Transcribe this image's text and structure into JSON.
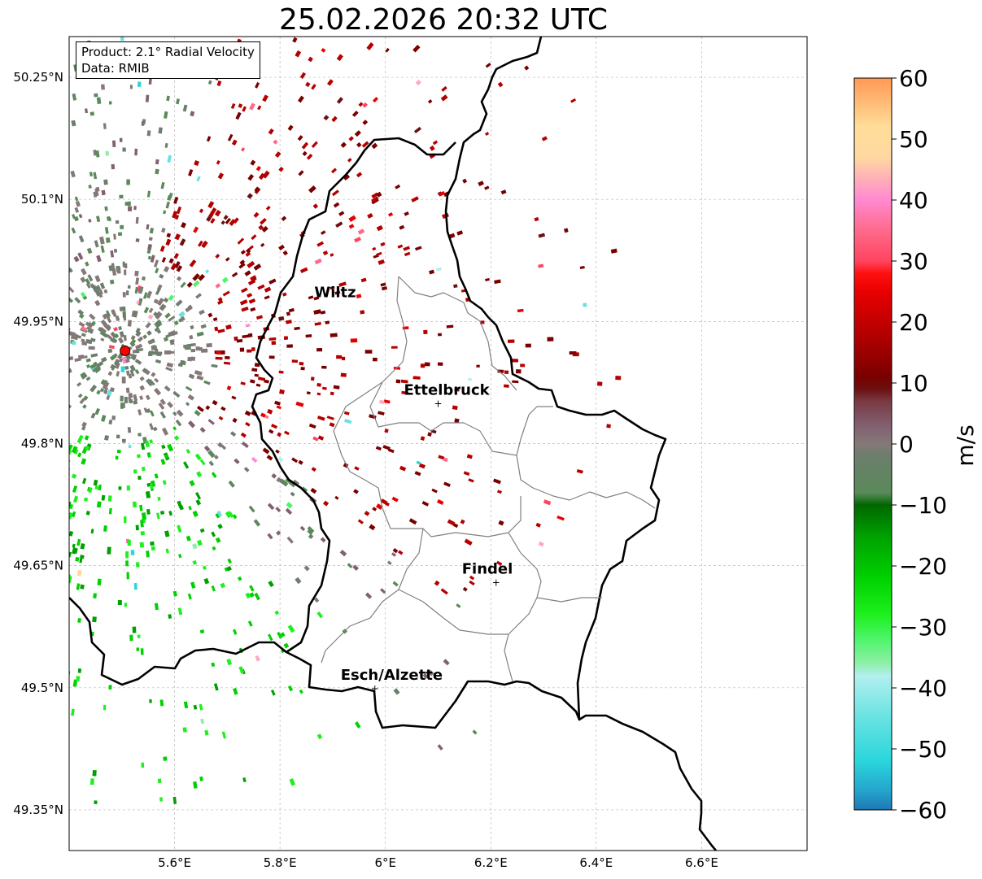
{
  "title": "25.02.2026 20:32 UTC",
  "info": {
    "product": "Product: 2.1° Radial Velocity",
    "source": "Data: RMIB"
  },
  "axes": {
    "lon_range": [
      5.4,
      6.8
    ],
    "lat_range": [
      49.3,
      50.3
    ],
    "lon_ticks": [
      {
        "value": 5.6,
        "label": "5.6°E"
      },
      {
        "value": 5.8,
        "label": "5.8°E"
      },
      {
        "value": 6.0,
        "label": "6°E"
      },
      {
        "value": 6.2,
        "label": "6.2°E"
      },
      {
        "value": 6.4,
        "label": "6.4°E"
      },
      {
        "value": 6.6,
        "label": "6.6°E"
      }
    ],
    "lat_ticks": [
      {
        "value": 50.25,
        "label": "50.25°N"
      },
      {
        "value": 50.1,
        "label": "50.1°N"
      },
      {
        "value": 49.95,
        "label": "49.95°N"
      },
      {
        "value": 49.8,
        "label": "49.8°N"
      },
      {
        "value": 49.65,
        "label": "49.65°N"
      },
      {
        "value": 49.5,
        "label": "49.5°N"
      },
      {
        "value": 49.35,
        "label": "49.35°N"
      }
    ],
    "grid": true
  },
  "radar": {
    "lon": 5.506,
    "lat": 49.914,
    "color": "#ff0000"
  },
  "cities": [
    {
      "name": "Wiltz",
      "lon": 5.93,
      "lat": 49.97,
      "marker": false
    },
    {
      "name": "Ettelbruck",
      "lon": 6.1,
      "lat": 49.85,
      "marker": true
    },
    {
      "name": "Findel",
      "lon": 6.21,
      "lat": 49.63,
      "marker": true
    },
    {
      "name": "Esch/Alzette",
      "lon": 5.98,
      "lat": 49.5,
      "marker": true
    }
  ],
  "colorbar": {
    "label": "m/s",
    "range": [
      -60,
      60
    ],
    "ticks": [
      {
        "value": 60,
        "label": "60"
      },
      {
        "value": 50,
        "label": "50"
      },
      {
        "value": 40,
        "label": "40"
      },
      {
        "value": 30,
        "label": "30"
      },
      {
        "value": 20,
        "label": "20"
      },
      {
        "value": 10,
        "label": "10"
      },
      {
        "value": 0,
        "label": "0"
      },
      {
        "value": -10,
        "label": "−10"
      },
      {
        "value": -20,
        "label": "−20"
      },
      {
        "value": -30,
        "label": "−30"
      },
      {
        "value": -40,
        "label": "−40"
      },
      {
        "value": -50,
        "label": "−50"
      },
      {
        "value": -60,
        "label": "−60"
      }
    ],
    "stops": [
      {
        "v": -60,
        "c": "#1f77b4"
      },
      {
        "v": -57,
        "c": "#24a3cc"
      },
      {
        "v": -52,
        "c": "#2ad6dc"
      },
      {
        "v": -45,
        "c": "#66e2e2"
      },
      {
        "v": -38,
        "c": "#b3efef"
      },
      {
        "v": -36,
        "c": "#8ef0a8"
      },
      {
        "v": -32,
        "c": "#4ef46a"
      },
      {
        "v": -28,
        "c": "#1ef01e"
      },
      {
        "v": -22,
        "c": "#00d100"
      },
      {
        "v": -15,
        "c": "#00a000"
      },
      {
        "v": -10,
        "c": "#006600"
      },
      {
        "v": -8,
        "c": "#5a8a5a"
      },
      {
        "v": -2,
        "c": "#6c7e6c"
      },
      {
        "v": 0,
        "c": "#857878"
      },
      {
        "v": 3,
        "c": "#826070"
      },
      {
        "v": 7,
        "c": "#7a3a44"
      },
      {
        "v": 9,
        "c": "#6a1010"
      },
      {
        "v": 11,
        "c": "#7a0000"
      },
      {
        "v": 18,
        "c": "#b40000"
      },
      {
        "v": 25,
        "c": "#e80000"
      },
      {
        "v": 28,
        "c": "#ff1010"
      },
      {
        "v": 30,
        "c": "#ff4460"
      },
      {
        "v": 35,
        "c": "#ff6a8a"
      },
      {
        "v": 40,
        "c": "#ff88d0"
      },
      {
        "v": 43,
        "c": "#ffaabb"
      },
      {
        "v": 47,
        "c": "#ffd8a0"
      },
      {
        "v": 52,
        "c": "#ffdd99"
      },
      {
        "v": 56,
        "c": "#ffbb77"
      },
      {
        "v": 60,
        "c": "#ff9955"
      }
    ]
  }
}
